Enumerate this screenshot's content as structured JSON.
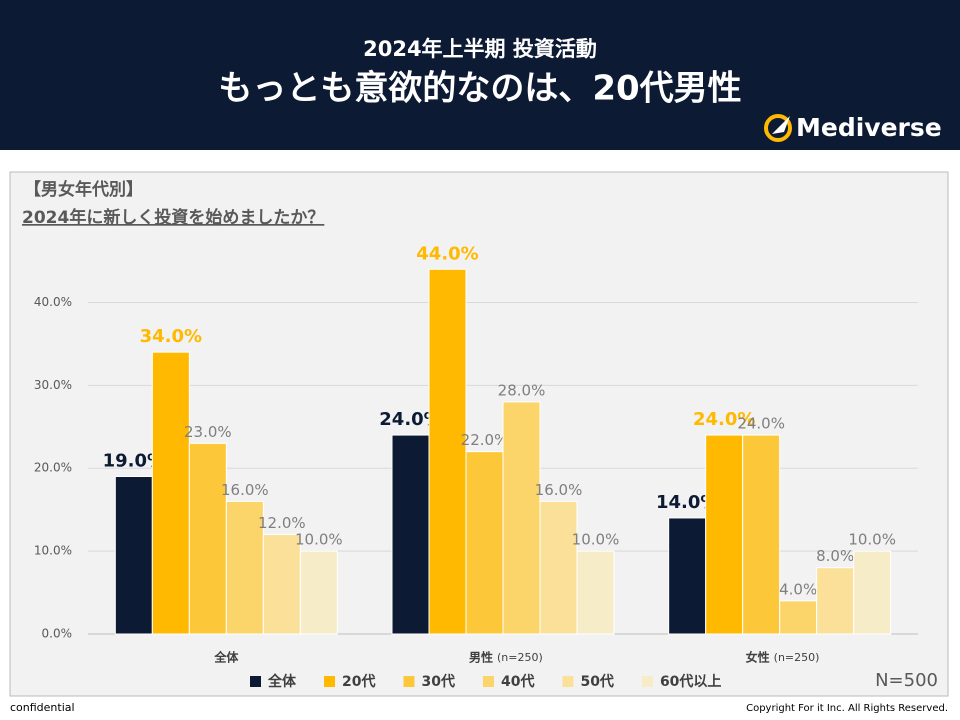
{
  "header": {
    "title_line1": "2024年上半期 投資活動",
    "title_line2": "もっとも意欲的なのは、20代男性",
    "logo": "Mediverse"
  },
  "panel": {
    "heading": "【男女年代別】",
    "question": "2024年に新しく投資を始めましたか？",
    "sample": "N=500"
  },
  "footer": {
    "left": "confidential",
    "right": "Copyright For it Inc. All Rights Reserved."
  },
  "chart_data": {
    "type": "bar",
    "categories": [
      "全体",
      "男性",
      "女性"
    ],
    "category_notes": [
      null,
      "(n=250)",
      "(n=250)"
    ],
    "ylim": [
      0,
      45
    ],
    "yticks": [
      {
        "value": 0,
        "label": "0.0%"
      },
      {
        "value": 10,
        "label": "10.0%"
      },
      {
        "value": 20,
        "label": "20.0%"
      },
      {
        "value": 30,
        "label": "30.0%"
      },
      {
        "value": 40,
        "label": "40.0%"
      }
    ],
    "grid": true,
    "series": [
      {
        "name": "全体",
        "color": "#0d1a33",
        "label_emphasis": true,
        "values": [
          19,
          24,
          14
        ],
        "value_labels": [
          "19.0%",
          "24.0%",
          "14.0%"
        ]
      },
      {
        "name": "20代",
        "color": "#ffb900",
        "label_emphasis": true,
        "values": [
          34,
          44,
          24
        ],
        "value_labels": [
          "34.0%",
          "44.0%",
          "24.0%"
        ]
      },
      {
        "name": "30代",
        "color": "#fcc83a",
        "label_emphasis": false,
        "values": [
          23,
          22,
          24
        ],
        "value_labels": [
          "23.0%",
          "22.0%",
          "24.0%"
        ]
      },
      {
        "name": "40代",
        "color": "#fbd56a",
        "label_emphasis": false,
        "values": [
          16,
          28,
          4
        ],
        "value_labels": [
          "16.0%",
          "28.0%",
          "4.0%"
        ]
      },
      {
        "name": "50代",
        "color": "#fbe09a",
        "label_emphasis": false,
        "values": [
          12,
          16,
          8
        ],
        "value_labels": [
          "12.0%",
          "16.0%",
          "8.0%"
        ]
      },
      {
        "name": "60代以上",
        "color": "#f7ecc8",
        "label_emphasis": false,
        "values": [
          10,
          10,
          10
        ],
        "value_labels": [
          "10.0%",
          "10.0%",
          "10.0%"
        ]
      }
    ]
  }
}
